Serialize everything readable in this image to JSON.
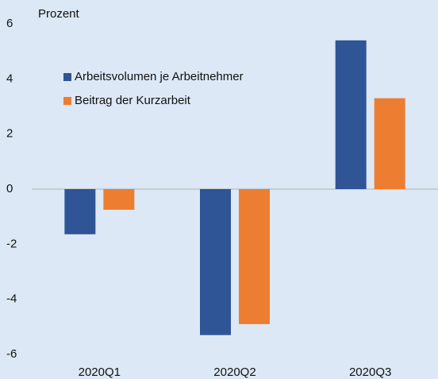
{
  "chart_data": {
    "type": "bar",
    "y_label": "Prozent",
    "categories": [
      "2020Q1",
      "2020Q2",
      "2020Q3"
    ],
    "series": [
      {
        "name": "Arbeitsvolumen je Arbeitnehmer",
        "color": "#2f5597",
        "values": [
          -1.64,
          -5.3,
          5.4
        ]
      },
      {
        "name": "Beitrag der Kurzarbeit",
        "color": "#ed7d31",
        "values": [
          -0.75,
          -4.9,
          3.3
        ]
      }
    ],
    "ylim": [
      -6,
      6
    ],
    "yticks": [
      -6,
      -4,
      -2,
      0,
      2,
      4,
      6
    ],
    "grid": false,
    "legend": "upper left"
  }
}
